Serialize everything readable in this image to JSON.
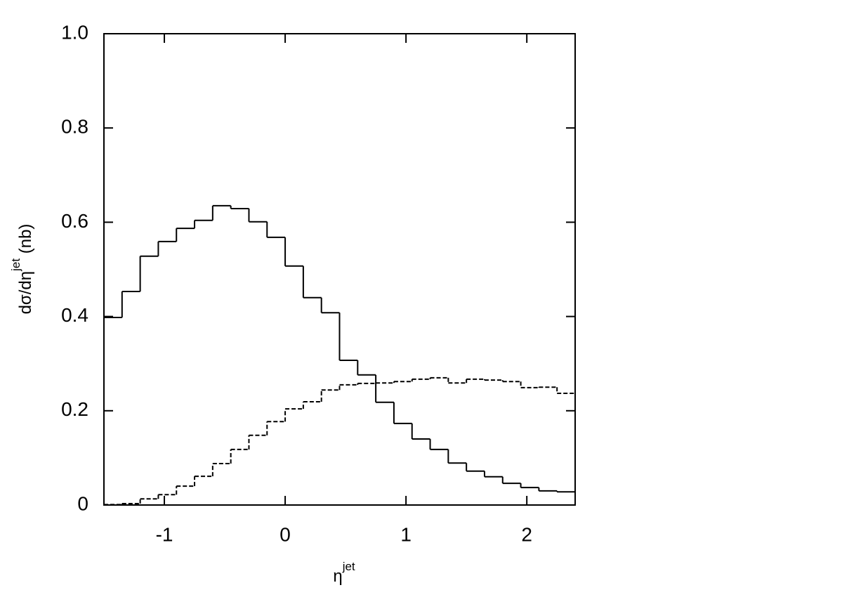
{
  "chart_data": {
    "type": "step-histogram",
    "xlabel": {
      "base": "η",
      "sup": "jet"
    },
    "ylabel": {
      "base": "dσ/dη",
      "sup": "jet",
      "rest": " (nb)"
    },
    "bins": [
      -1.5,
      -1.35,
      -1.2,
      -1.05,
      -0.9,
      -0.75,
      -0.6,
      -0.45,
      -0.3,
      -0.15,
      0,
      0.15,
      0.3,
      0.45,
      0.6,
      0.75,
      0.9,
      1.05,
      1.2,
      1.35,
      1.5,
      1.65,
      1.8,
      1.95,
      2.1,
      2.25,
      2.4
    ],
    "series": [
      {
        "name": "solid",
        "color": "#000000",
        "dash": "none",
        "values": [
          0.398,
          0.453,
          0.528,
          0.559,
          0.587,
          0.604,
          0.635,
          0.629,
          0.601,
          0.568,
          0.507,
          0.44,
          0.408,
          0.307,
          0.276,
          0.218,
          0.173,
          0.14,
          0.118,
          0.089,
          0.072,
          0.06,
          0.046,
          0.037,
          0.03,
          0.028
        ]
      },
      {
        "name": "dashed",
        "color": "#000000",
        "dash": "6,3",
        "values": [
          0.001,
          0.003,
          0.013,
          0.022,
          0.04,
          0.061,
          0.088,
          0.118,
          0.148,
          0.177,
          0.204,
          0.219,
          0.244,
          0.255,
          0.258,
          0.259,
          0.262,
          0.267,
          0.27,
          0.259,
          0.267,
          0.265,
          0.262,
          0.249,
          0.25,
          0.237
        ]
      }
    ],
    "xlim": [
      -1.5,
      2.4
    ],
    "ylim": [
      0,
      1
    ],
    "xticks": [
      -1,
      0,
      1,
      2
    ],
    "yticks": [
      0,
      0.2,
      0.4,
      0.6,
      0.8,
      {
        "value": 1,
        "label": "1.0"
      }
    ]
  }
}
